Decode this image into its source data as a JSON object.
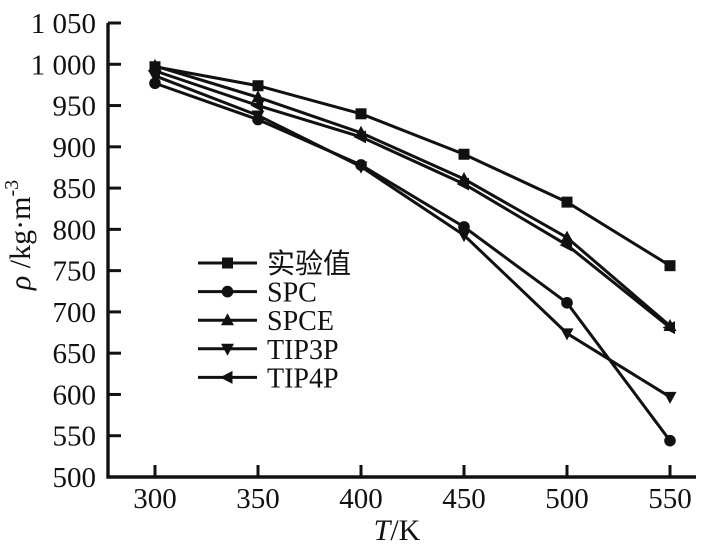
{
  "chart_data": {
    "type": "line",
    "title": "",
    "xlabel": {
      "symbol": "T",
      "unit": "/K"
    },
    "ylabel": {
      "symbol": "ρ",
      "unit": "/kg·m",
      "exponent": "-3"
    },
    "x": [
      300,
      350,
      400,
      450,
      500,
      550
    ],
    "x_tick_labels": [
      "300",
      "350",
      "400",
      "450",
      "500",
      "550"
    ],
    "y_ticks": [
      500,
      550,
      600,
      650,
      700,
      750,
      800,
      850,
      900,
      950,
      1000,
      1050
    ],
    "y_tick_labels": [
      "500",
      "550",
      "600",
      "650",
      "700",
      "750",
      "800",
      "850",
      "900",
      "950",
      "1 000",
      "1 050"
    ],
    "xlim": [
      277,
      562
    ],
    "ylim": [
      500,
      1050
    ],
    "grid": false,
    "legend_position": "inside-left-middle",
    "line_color": "#111111",
    "series": [
      {
        "name": "实验值",
        "marker": "square",
        "values": [
          997,
          974,
          940,
          891,
          833,
          756
        ]
      },
      {
        "name": "SPC",
        "marker": "circle",
        "values": [
          977,
          933,
          878,
          803,
          711,
          544
        ]
      },
      {
        "name": "SPCE",
        "marker": "triangle-up",
        "values": [
          998,
          960,
          917,
          861,
          790,
          683
        ]
      },
      {
        "name": "TIP3P",
        "marker": "triangle-down",
        "values": [
          986,
          938,
          876,
          793,
          674,
          597
        ]
      },
      {
        "name": "TIP4P",
        "marker": "triangle-left",
        "values": [
          992,
          950,
          912,
          855,
          781,
          681
        ]
      }
    ]
  }
}
